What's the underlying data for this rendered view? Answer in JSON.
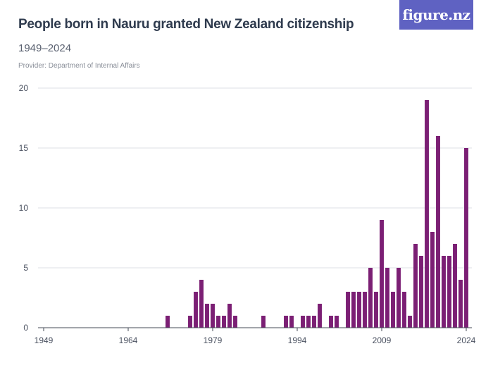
{
  "header": {
    "title": "People born in Nauru granted New Zealand citizenship",
    "subtitle": "1949–2024",
    "provider": "Provider: Department of Internal Affairs",
    "logo_text": "figure.nz"
  },
  "colors": {
    "bar": "#7b1f74",
    "grid": "#dcdfe5",
    "axis": "#444b57",
    "logo_bg": "#5f62c2"
  },
  "chart_data": {
    "type": "bar",
    "title": "People born in Nauru granted New Zealand citizenship",
    "subtitle": "1949–2024",
    "xlabel": "",
    "ylabel": "",
    "ylim": [
      0,
      20
    ],
    "yticks": [
      0,
      5,
      10,
      15,
      20
    ],
    "xticks": [
      1949,
      1964,
      1979,
      1994,
      2009,
      2024
    ],
    "grid": true,
    "x": [
      1949,
      1950,
      1951,
      1952,
      1953,
      1954,
      1955,
      1956,
      1957,
      1958,
      1959,
      1960,
      1961,
      1962,
      1963,
      1964,
      1965,
      1966,
      1967,
      1968,
      1969,
      1970,
      1971,
      1972,
      1973,
      1974,
      1975,
      1976,
      1977,
      1978,
      1979,
      1980,
      1981,
      1982,
      1983,
      1984,
      1985,
      1986,
      1987,
      1988,
      1989,
      1990,
      1991,
      1992,
      1993,
      1994,
      1995,
      1996,
      1997,
      1998,
      1999,
      2000,
      2001,
      2002,
      2003,
      2004,
      2005,
      2006,
      2007,
      2008,
      2009,
      2010,
      2011,
      2012,
      2013,
      2014,
      2015,
      2016,
      2017,
      2018,
      2019,
      2020,
      2021,
      2022,
      2023,
      2024
    ],
    "values": [
      0,
      0,
      0,
      0,
      0,
      0,
      0,
      0,
      0,
      0,
      0,
      0,
      0,
      0,
      0,
      0,
      0,
      0,
      0,
      0,
      0,
      0,
      1,
      0,
      0,
      0,
      1,
      3,
      4,
      2,
      2,
      1,
      1,
      2,
      1,
      0,
      0,
      0,
      0,
      1,
      0,
      0,
      0,
      1,
      1,
      0,
      1,
      1,
      1,
      2,
      0,
      1,
      1,
      0,
      3,
      3,
      3,
      3,
      5,
      3,
      9,
      5,
      3,
      5,
      3,
      1,
      7,
      6,
      19,
      8,
      16,
      6,
      6,
      7,
      4,
      15
    ]
  }
}
